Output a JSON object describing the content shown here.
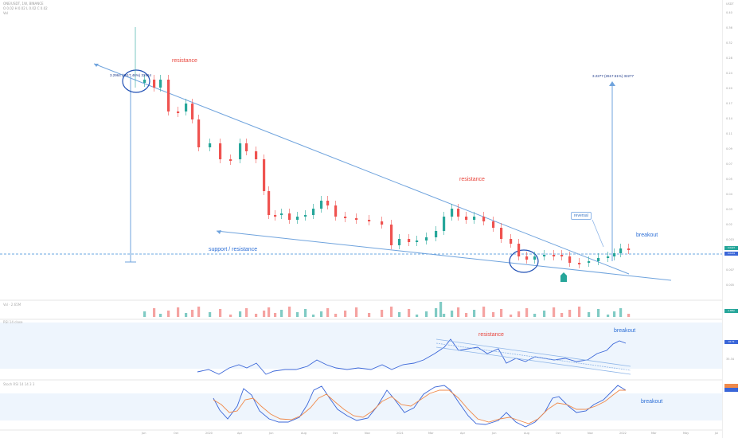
{
  "header": {
    "line1": "ONE/USDT, 1W, BINANCE",
    "line2": "O 0.02 H 0.02 L 0.02 C 0.02",
    "line3": "Vol"
  },
  "price_axis": {
    "unit_label": "USDT",
    "ticks": [
      "0.40",
      "0.36",
      "0.32",
      "0.28",
      "0.24",
      "0.20",
      "0.17",
      "0.14",
      "0.11",
      "0.09",
      "0.07",
      "0.05",
      "0.04",
      "0.03",
      "0.02",
      "0.015",
      "0.01",
      "0.007",
      "0.005"
    ],
    "current_price_tag": "0.0227",
    "current_price_tag2": "0.0219"
  },
  "time_axis": {
    "labels": [
      "Jun",
      "Oct",
      "2020",
      "Apr",
      "Jun",
      "Aug",
      "Oct",
      "Nov",
      "2021",
      "Mar",
      "Apr",
      "Jun",
      "Aug",
      "Oct",
      "Nov",
      "2022",
      "Mar",
      "May",
      "Jul"
    ]
  },
  "annotations": {
    "resistance_top": "resistance",
    "resistance_mid": "resistance",
    "support_resistance": "support / resistance",
    "breakout_price": "breakout",
    "reversal": "reversal",
    "measure_left": "3.2964 (2617.46%) 32964",
    "measure_right": "3.2277 (2617.51%) 32277",
    "resistance_rsi": "resistance",
    "breakout_rsi": "breakout",
    "breakout_stoch": "breakout"
  },
  "indicators": {
    "volume_label": "Vol · 2.65M",
    "rsi_label": "RSI 14 close",
    "rsi_values": [
      "35.34",
      "34.73"
    ],
    "stoch_label": "Stoch RSI 14 14 3 3",
    "volume_tag": "2.65M"
  },
  "colors": {
    "up": "#26a69a",
    "down": "#ef5350",
    "trend": "#5b9bd5",
    "rsi_line": "#2962ff",
    "stoch_k": "#2962ff",
    "stoch_d": "#ff6d00"
  }
}
